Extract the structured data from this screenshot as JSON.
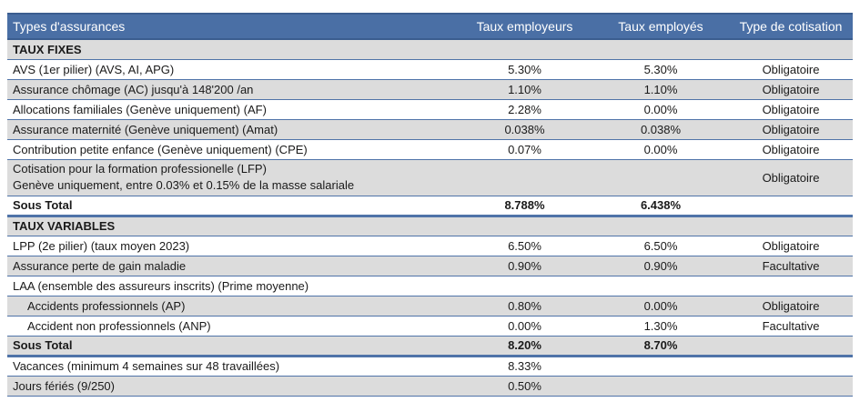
{
  "header": {
    "col1": "Types d'assurances",
    "col2": "Taux employeurs",
    "col3": "Taux employés",
    "col4": "Type de cotisation"
  },
  "fixed": {
    "section_title": "TAUX FIXES",
    "rows": [
      {
        "label": "AVS (1er pilier) (AVS, AI, APG)",
        "employer": "5.30%",
        "employee": "5.30%",
        "type": "Obligatoire"
      },
      {
        "label": "Assurance chômage (AC) jusqu'à 148'200 /an",
        "employer": "1.10%",
        "employee": "1.10%",
        "type": "Obligatoire"
      },
      {
        "label": "Allocations familiales (Genève uniquement) (AF)",
        "employer": "2.28%",
        "employee": "0.00%",
        "type": "Obligatoire"
      },
      {
        "label": "Assurance maternité (Genève uniquement) (Amat)",
        "employer": "0.038%",
        "employee": "0.038%",
        "type": "Obligatoire"
      },
      {
        "label": "Contribution petite enfance (Genève uniquement) (CPE)",
        "employer": "0.07%",
        "employee": "0.00%",
        "type": "Obligatoire"
      }
    ],
    "lfp": {
      "line1": "Cotisation pour la formation professionelle (LFP)",
      "line2": "Genève uniquement, entre 0.03% et 0.15% de la masse salariale",
      "type": "Obligatoire"
    },
    "total": {
      "label": "Sous Total",
      "employer": "8.788%",
      "employee": "6.438%"
    }
  },
  "variable": {
    "section_title": "TAUX VARIABLES",
    "rows": [
      {
        "label": "LPP (2e pilier) (taux moyen 2023)",
        "employer": "6.50%",
        "employee": "6.50%",
        "type": "Obligatoire"
      },
      {
        "label": "Assurance perte de gain maladie",
        "employer": "0.90%",
        "employee": "0.90%",
        "type": "Facultative"
      }
    ],
    "laa": {
      "label": "LAA (ensemble des assureurs inscrits) (Prime moyenne)",
      "rows": [
        {
          "label": "Accidents professionnels (AP)",
          "employer": "0.80%",
          "employee": "0.00%",
          "type": "Obligatoire"
        },
        {
          "label": "Accident non professionnels (ANP)",
          "employer": "0.00%",
          "employee": "1.30%",
          "type": "Facultative"
        }
      ]
    },
    "total": {
      "label": "Sous Total",
      "employer": "8.20%",
      "employee": "8.70%"
    }
  },
  "extra": [
    {
      "label": "Vacances (minimum 4 semaines sur 48 travaillées)",
      "employer": "8.33%"
    },
    {
      "label": "Jours fériés (9/250)",
      "employer": "0.50%"
    }
  ]
}
